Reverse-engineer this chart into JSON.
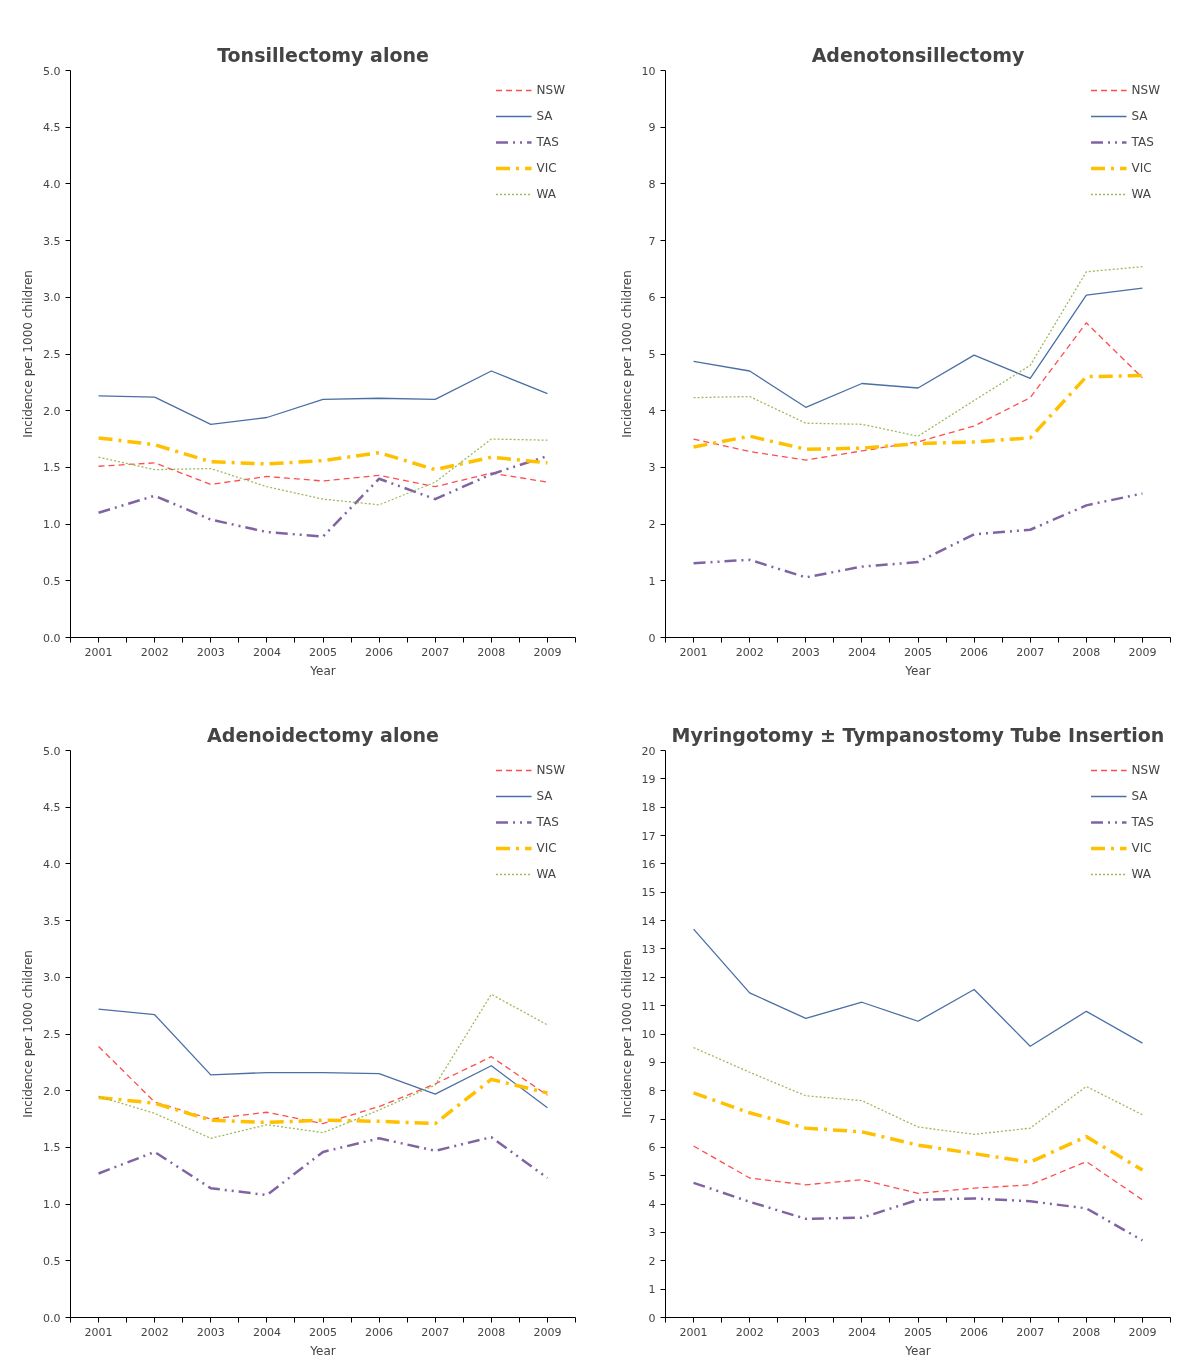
{
  "chart_data": [
    {
      "type": "line",
      "title": "Tonsillectomy alone",
      "xlabel": "Year",
      "ylabel": "Incidence per 1000 children",
      "categories": [
        "2001",
        "2002",
        "2003",
        "2004",
        "2005",
        "2006",
        "2007",
        "2008",
        "2009"
      ],
      "ylim": [
        0,
        5
      ],
      "yticks": [
        {
          "value": 0,
          "label": "0.0"
        },
        0.5,
        {
          "value": 1,
          "label": "1.0"
        },
        1.5,
        {
          "value": 2,
          "label": "2.0"
        },
        2.5,
        {
          "value": 3,
          "label": "3.0"
        },
        3.5,
        {
          "value": 4,
          "label": "4.0"
        },
        4.5,
        {
          "value": 5,
          "label": "5.0"
        }
      ],
      "grid": false,
      "legend": "top right",
      "marker": "none",
      "series": [
        {
          "name": "NSW",
          "color": "#ff4d4d",
          "line_style": "dashed",
          "values": [
            1.51,
            1.54,
            1.35,
            1.42,
            1.38,
            1.43,
            1.33,
            1.45,
            1.37
          ]
        },
        {
          "name": "SA",
          "color": "#4a6fa5",
          "line_style": "solid",
          "values": [
            2.13,
            2.12,
            1.88,
            1.94,
            2.1,
            2.11,
            2.1,
            2.35,
            2.15
          ]
        },
        {
          "name": "TAS",
          "color": "#8064a2",
          "line_style": "dashdotdot",
          "values": [
            1.1,
            1.25,
            1.04,
            0.93,
            0.89,
            1.4,
            1.22,
            1.44,
            1.6
          ]
        },
        {
          "name": "VIC",
          "color": "#ffc000",
          "line_style": "dashdot",
          "values": [
            1.76,
            1.7,
            1.55,
            1.53,
            1.56,
            1.63,
            1.48,
            1.59,
            1.54
          ]
        },
        {
          "name": "WA",
          "color": "#9bbb59",
          "line_style": "dotted",
          "values": [
            1.59,
            1.48,
            1.49,
            1.33,
            1.22,
            1.17,
            1.37,
            1.75,
            1.74
          ]
        }
      ]
    },
    {
      "type": "line",
      "title": "Adenotonsillectomy",
      "xlabel": "Year",
      "ylabel": "Incidence per 1000 children",
      "categories": [
        "2001",
        "2002",
        "2003",
        "2004",
        "2005",
        "2006",
        "2007",
        "2008",
        "2009"
      ],
      "ylim": [
        0,
        10
      ],
      "yticks": [
        0,
        1,
        2,
        3,
        4,
        5,
        6,
        7,
        8,
        9,
        10
      ],
      "grid": false,
      "legend": "top right",
      "marker": "none",
      "series": [
        {
          "name": "NSW",
          "color": "#ff4d4d",
          "line_style": "dashed",
          "values": [
            3.5,
            3.28,
            3.13,
            3.29,
            3.45,
            3.73,
            4.23,
            5.55,
            4.58
          ]
        },
        {
          "name": "SA",
          "color": "#4a6fa5",
          "line_style": "solid",
          "values": [
            4.87,
            4.7,
            4.06,
            4.48,
            4.4,
            4.98,
            4.57,
            6.04,
            6.16
          ]
        },
        {
          "name": "TAS",
          "color": "#8064a2",
          "line_style": "dashdotdot",
          "values": [
            1.31,
            1.37,
            1.06,
            1.25,
            1.33,
            1.82,
            1.9,
            2.33,
            2.54
          ]
        },
        {
          "name": "VIC",
          "color": "#ffc000",
          "line_style": "dashdot",
          "values": [
            3.36,
            3.55,
            3.32,
            3.34,
            3.42,
            3.45,
            3.52,
            4.6,
            4.62
          ]
        },
        {
          "name": "WA",
          "color": "#9bbb59",
          "line_style": "dotted",
          "values": [
            4.23,
            4.25,
            3.78,
            3.76,
            3.55,
            4.18,
            4.8,
            6.45,
            6.54
          ]
        }
      ]
    },
    {
      "type": "line",
      "title": "Adenoidectomy alone",
      "xlabel": "Year",
      "ylabel": "Incidence per 1000 children",
      "categories": [
        "2001",
        "2002",
        "2003",
        "2004",
        "2005",
        "2006",
        "2007",
        "2008",
        "2009"
      ],
      "ylim": [
        0,
        5
      ],
      "yticks": [
        {
          "value": 0,
          "label": "0.0"
        },
        0.5,
        {
          "value": 1,
          "label": "1.0"
        },
        1.5,
        {
          "value": 2,
          "label": "2.0"
        },
        2.5,
        {
          "value": 3,
          "label": "3.0"
        },
        3.5,
        {
          "value": 4,
          "label": "4.0"
        },
        4.5,
        {
          "value": 5,
          "label": "5.0"
        }
      ],
      "grid": false,
      "legend": "top right",
      "marker": "none",
      "series": [
        {
          "name": "NSW",
          "color": "#ff4d4d",
          "line_style": "dashed",
          "values": [
            2.39,
            1.9,
            1.75,
            1.81,
            1.71,
            1.86,
            2.06,
            2.3,
            1.96
          ]
        },
        {
          "name": "SA",
          "color": "#4a6fa5",
          "line_style": "solid",
          "values": [
            2.72,
            2.67,
            2.14,
            2.16,
            2.16,
            2.15,
            1.97,
            2.22,
            1.85
          ]
        },
        {
          "name": "TAS",
          "color": "#8064a2",
          "line_style": "dashdotdot",
          "values": [
            1.27,
            1.46,
            1.14,
            1.08,
            1.46,
            1.58,
            1.47,
            1.59,
            1.23
          ]
        },
        {
          "name": "VIC",
          "color": "#ffc000",
          "line_style": "dashdot",
          "values": [
            1.94,
            1.89,
            1.74,
            1.72,
            1.74,
            1.73,
            1.71,
            2.1,
            1.98
          ]
        },
        {
          "name": "WA",
          "color": "#9bbb59",
          "line_style": "dotted",
          "values": [
            1.95,
            1.8,
            1.58,
            1.7,
            1.63,
            1.83,
            2.05,
            2.85,
            2.58
          ]
        }
      ]
    },
    {
      "type": "line",
      "title": "Myringotomy ± Tympanostomy Tube Insertion",
      "xlabel": "Year",
      "ylabel": "Incidence per 1000 children",
      "categories": [
        "2001",
        "2002",
        "2003",
        "2004",
        "2005",
        "2006",
        "2007",
        "2008",
        "2009"
      ],
      "ylim": [
        0,
        20
      ],
      "yticks": [
        0,
        1,
        2,
        3,
        4,
        5,
        6,
        7,
        8,
        9,
        10,
        11,
        12,
        13,
        14,
        15,
        16,
        17,
        18,
        19,
        20
      ],
      "grid": false,
      "legend": "top right",
      "marker": "none",
      "series": [
        {
          "name": "NSW",
          "color": "#ff4d4d",
          "line_style": "dashed",
          "values": [
            6.05,
            4.92,
            4.68,
            4.86,
            4.38,
            4.56,
            4.68,
            5.5,
            4.15
          ]
        },
        {
          "name": "SA",
          "color": "#4a6fa5",
          "line_style": "solid",
          "values": [
            13.7,
            11.45,
            10.55,
            11.12,
            10.45,
            11.57,
            9.57,
            10.8,
            9.68
          ]
        },
        {
          "name": "TAS",
          "color": "#8064a2",
          "line_style": "dashdotdot",
          "values": [
            4.75,
            4.08,
            3.48,
            3.52,
            4.15,
            4.2,
            4.1,
            3.85,
            2.72
          ]
        },
        {
          "name": "VIC",
          "color": "#ffc000",
          "line_style": "dashdot",
          "values": [
            7.92,
            7.22,
            6.68,
            6.55,
            6.08,
            5.78,
            5.48,
            6.38,
            5.2
          ]
        },
        {
          "name": "WA",
          "color": "#9bbb59",
          "line_style": "dotted",
          "values": [
            9.52,
            8.65,
            7.82,
            7.65,
            6.72,
            6.46,
            6.68,
            8.15,
            7.15
          ]
        }
      ]
    }
  ]
}
